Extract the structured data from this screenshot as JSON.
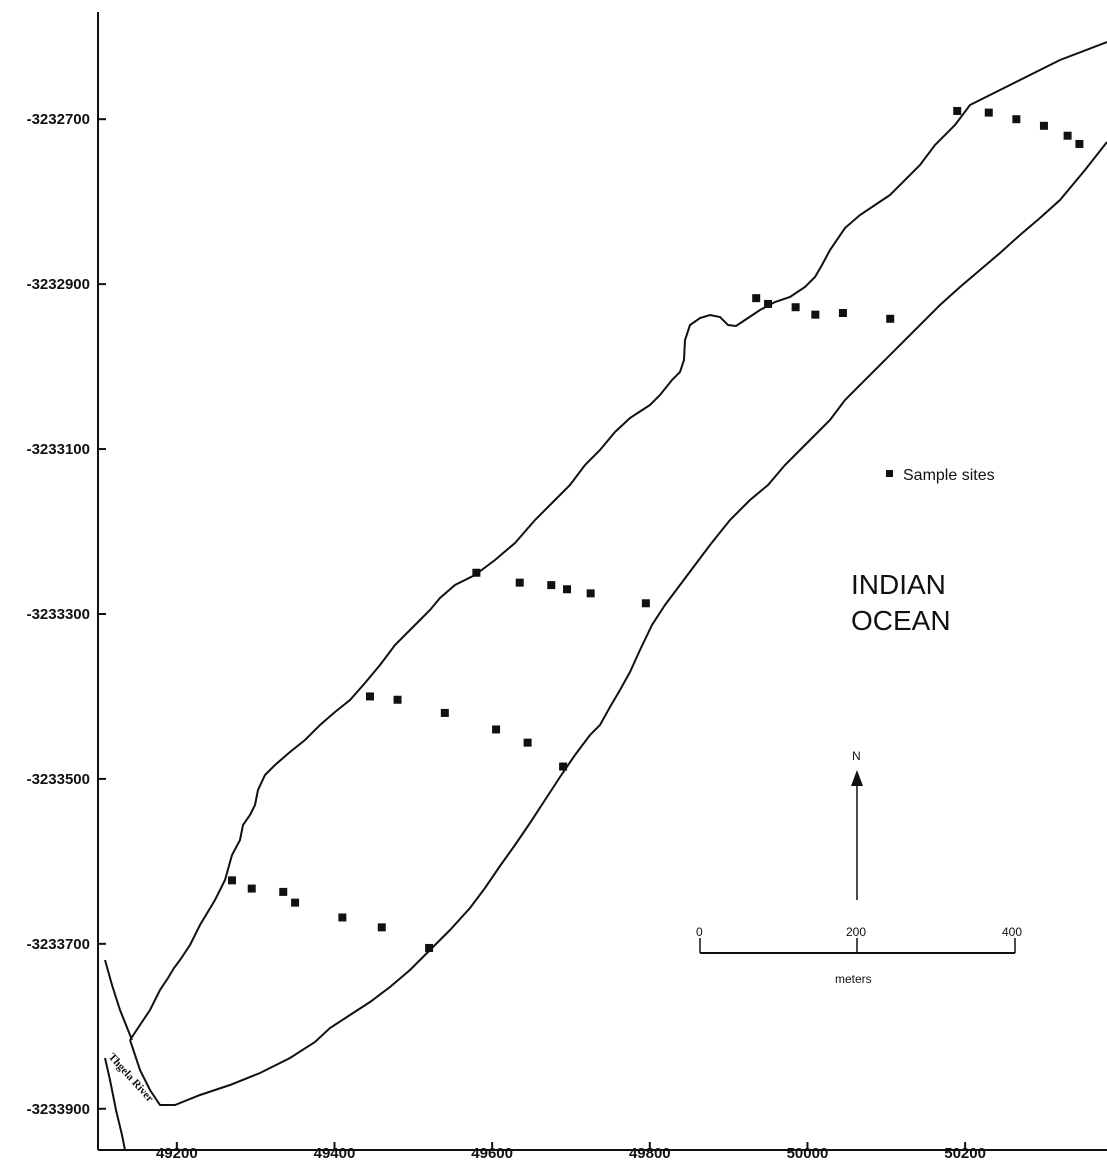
{
  "map": {
    "x_ticks": [
      "49200",
      "49400",
      "49600",
      "49800",
      "50000",
      "50200"
    ],
    "y_ticks": [
      "-3232700",
      "-3232900",
      "-3233100",
      "-3233300",
      "-3233500",
      "-3233700",
      "-3233900"
    ],
    "legend_label": "Sample sites",
    "ocean_label_line1": "INDIAN",
    "ocean_label_line2": "OCEAN",
    "north_label": "N",
    "scale_ticks": [
      "0",
      "200",
      "400"
    ],
    "scale_unit": "meters",
    "river_label": "Thgela River",
    "colors": {
      "ink": "#111111",
      "background": "#ffffff"
    }
  },
  "chart_data": {
    "type": "scatter",
    "xlim": [
      49100,
      50380
    ],
    "ylim": [
      -3233950,
      -3232570
    ],
    "series": [
      {
        "name": "Sample sites",
        "points": [
          [
            50190,
            -3232690
          ],
          [
            50230,
            -3232692
          ],
          [
            50265,
            -3232700
          ],
          [
            50300,
            -3232708
          ],
          [
            50330,
            -3232720
          ],
          [
            50345,
            -3232730
          ],
          [
            49935,
            -3232917
          ],
          [
            49950,
            -3232924
          ],
          [
            49985,
            -3232928
          ],
          [
            50010,
            -3232937
          ],
          [
            50045,
            -3232935
          ],
          [
            50105,
            -3232942
          ],
          [
            49580,
            -3233250
          ],
          [
            49635,
            -3233262
          ],
          [
            49675,
            -3233265
          ],
          [
            49695,
            -3233270
          ],
          [
            49725,
            -3233275
          ],
          [
            49795,
            -3233287
          ],
          [
            49445,
            -3233400
          ],
          [
            49480,
            -3233404
          ],
          [
            49540,
            -3233420
          ],
          [
            49605,
            -3233440
          ],
          [
            49645,
            -3233456
          ],
          [
            49690,
            -3233485
          ],
          [
            49270,
            -3233623
          ],
          [
            49295,
            -3233633
          ],
          [
            49335,
            -3233637
          ],
          [
            49350,
            -3233650
          ],
          [
            49410,
            -3233668
          ],
          [
            49460,
            -3233680
          ],
          [
            49520,
            -3233705
          ]
        ]
      }
    ]
  }
}
